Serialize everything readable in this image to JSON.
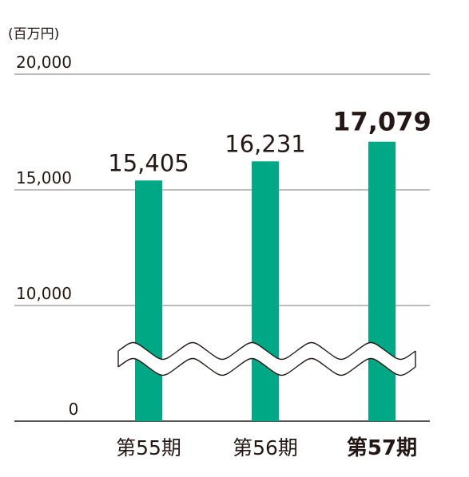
{
  "chart_data": {
    "type": "bar",
    "unit_label": "(百万円)",
    "categories": [
      "第55期",
      "第56期",
      "第57期"
    ],
    "values": [
      15405,
      16231,
      17079
    ],
    "value_labels": [
      "15,405",
      "16,231",
      "17,079"
    ],
    "highlight_index": 2,
    "y_ticks": [
      0,
      10000,
      15000,
      20000
    ],
    "y_tick_labels": [
      "0",
      "10,000",
      "15,000",
      "20,000"
    ],
    "y_axis_break": true,
    "grid": true,
    "colors": {
      "bar": "#00a886",
      "text": "#231815",
      "grid": "#7a7a7a"
    }
  }
}
